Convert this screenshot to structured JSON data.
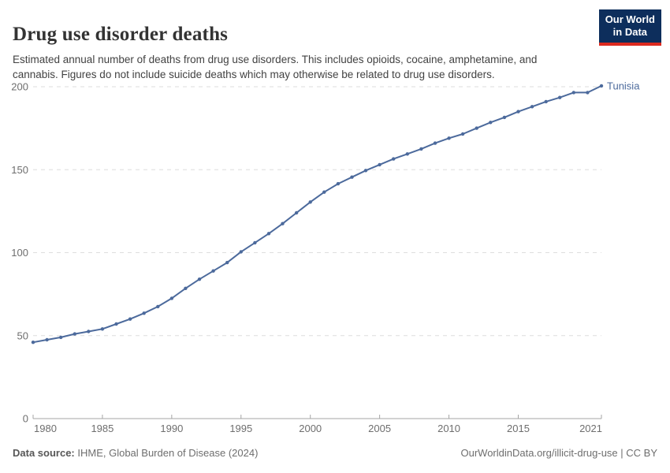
{
  "header": {
    "title": "Drug use disorder deaths",
    "subtitle": "Estimated annual number of deaths from drug use disorders. This includes opioids, cocaine, amphetamine, and cannabis. Figures do not include suicide deaths which may otherwise be related to drug use disorders.",
    "logo": {
      "line1": "Our World",
      "line2": "in Data",
      "bg_color": "#0d2e5c",
      "accent_color": "#dc2a1f"
    }
  },
  "chart_data": {
    "type": "line",
    "title": "Drug use disorder deaths",
    "entity": "Tunisia",
    "x": [
      1980,
      1981,
      1982,
      1983,
      1984,
      1985,
      1986,
      1987,
      1988,
      1989,
      1990,
      1991,
      1992,
      1993,
      1994,
      1995,
      1996,
      1997,
      1998,
      1999,
      2000,
      2001,
      2002,
      2003,
      2004,
      2005,
      2006,
      2007,
      2008,
      2009,
      2010,
      2011,
      2012,
      2013,
      2014,
      2015,
      2016,
      2017,
      2018,
      2019,
      2020,
      2021
    ],
    "series": [
      {
        "name": "Tunisia",
        "values": [
          46,
          47.5,
          49,
          51,
          52.5,
          54,
          57,
          60,
          63.5,
          67.5,
          72.5,
          78.5,
          84,
          89,
          94,
          100.5,
          106,
          111.5,
          117.5,
          124,
          130.5,
          136.5,
          141.5,
          145.5,
          149.5,
          153,
          156.5,
          159.5,
          162.5,
          166,
          169,
          171.5,
          175,
          178.5,
          181.5,
          185,
          188,
          191,
          193.5,
          196.5,
          196.5,
          200.5
        ]
      }
    ],
    "xlabel": "",
    "ylabel": "",
    "ylim": [
      0,
      200
    ],
    "yticks": [
      0,
      50,
      100,
      150,
      200
    ],
    "xticks": [
      1980,
      1985,
      1990,
      1995,
      2000,
      2005,
      2010,
      2015,
      2021
    ],
    "grid": true,
    "legend_position": "end-of-line",
    "colors": {
      "line": "#4c6a9c",
      "entity_label": "#4c6a9c",
      "gridline": "#dddddd",
      "axis": "#a5a5a5",
      "tick_label": "#6e6e6e"
    }
  },
  "footer": {
    "source_label": "Data source:",
    "source_text": " IHME, Global Burden of Disease (2024)",
    "right_text": "OurWorldinData.org/illicit-drug-use | CC BY"
  }
}
